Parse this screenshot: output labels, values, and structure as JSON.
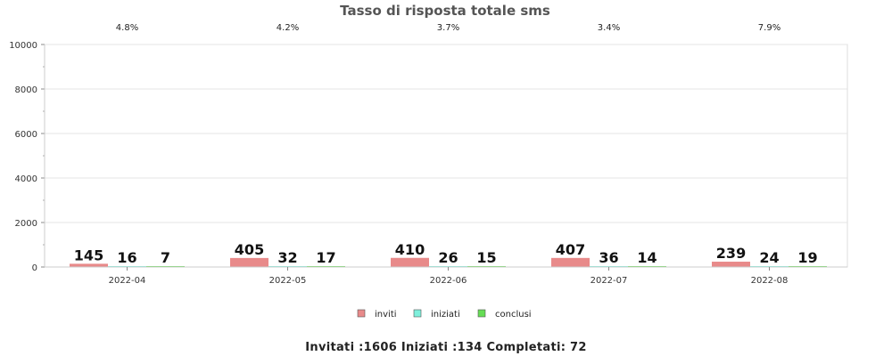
{
  "chart_data": {
    "type": "bar",
    "title": "Tasso di risposta totale sms",
    "categories": [
      "2022-04",
      "2022-05",
      "2022-06",
      "2022-07",
      "2022-08"
    ],
    "rates": [
      "4.8%",
      "4.2%",
      "3.7%",
      "3.4%",
      "7.9%"
    ],
    "series": [
      {
        "name": "inviti",
        "values": [
          145,
          405,
          410,
          407,
          239
        ],
        "color": "#e88a8a"
      },
      {
        "name": "iniziati",
        "values": [
          16,
          32,
          26,
          36,
          24
        ],
        "color": "#7ff0dc"
      },
      {
        "name": "conclusi",
        "values": [
          7,
          17,
          15,
          14,
          19
        ],
        "color": "#66dd55"
      }
    ],
    "ylim": [
      0,
      10000
    ],
    "yticks": [
      0,
      2000,
      4000,
      6000,
      8000,
      10000
    ],
    "grid": true,
    "legend_position": "bottom-center"
  },
  "footer": "Invitati :1606 Iniziati :134 Completati: 72"
}
